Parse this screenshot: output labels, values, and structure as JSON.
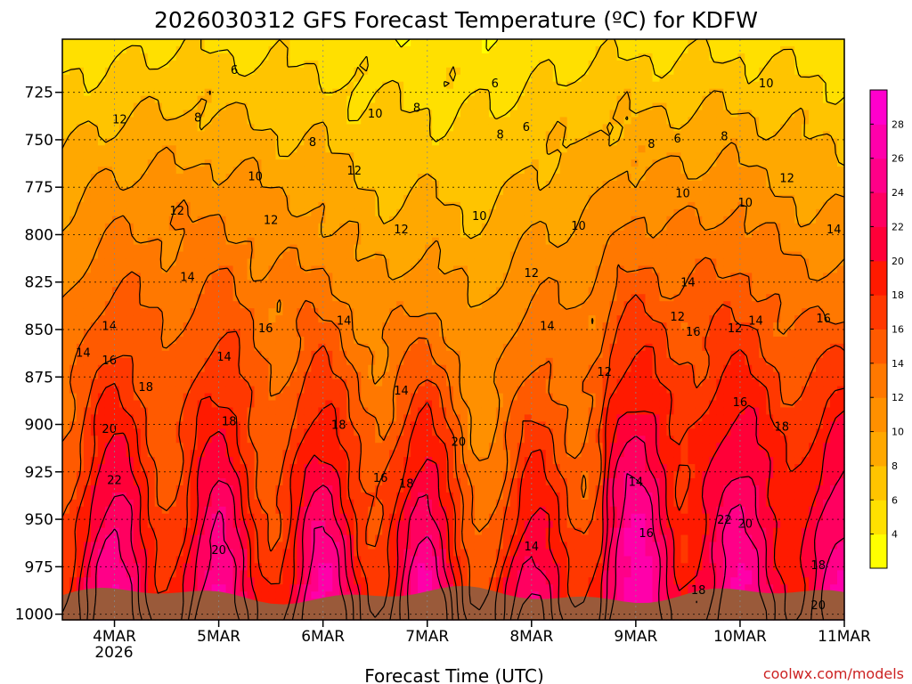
{
  "chart_data": {
    "type": "heatmap",
    "title": "2026030312 GFS Forecast Temperature (ºC) for KDFW",
    "xlabel": "Forecast Time (UTC)",
    "ylabel": "",
    "credit": "coolwx.com/models",
    "credit_color": "#cc2222",
    "y_ticks": [
      "725",
      "750",
      "775",
      "800",
      "825",
      "850",
      "875",
      "900",
      "925",
      "950",
      "975",
      "1000"
    ],
    "y_values": [
      725,
      750,
      775,
      800,
      825,
      850,
      875,
      900,
      925,
      950,
      975,
      1000
    ],
    "ylim": [
      697,
      1003
    ],
    "x_ticks": [
      "4MAR",
      "5MAR",
      "6MAR",
      "7MAR",
      "8MAR",
      "9MAR",
      "10MAR",
      "11MAR"
    ],
    "x_values": [
      0.5,
      1.5,
      2.5,
      3.5,
      4.5,
      5.5,
      6.5,
      7.5
    ],
    "x_subtitle": "2026",
    "xlim": [
      0.0,
      7.5
    ],
    "colorbar": {
      "levels": [
        2,
        4,
        6,
        8,
        10,
        12,
        14,
        16,
        18,
        20,
        22,
        24,
        26,
        28,
        30
      ],
      "labels": [
        "4",
        "6",
        "8",
        "10",
        "12",
        "14",
        "16",
        "18",
        "20",
        "22",
        "24",
        "26",
        "28"
      ],
      "colors": [
        "#ffff00",
        "#ffe000",
        "#ffc400",
        "#ffa800",
        "#ff9000",
        "#ff7800",
        "#ff5a00",
        "#ff3800",
        "#ff1a00",
        "#ff0038",
        "#ff0060",
        "#ff0088",
        "#ff00aa",
        "#ff00cc"
      ]
    },
    "ground_color": "#9a5a3a",
    "grid": true,
    "contour_labels": [
      {
        "t": "6",
        "x": 1.65,
        "p": 713
      },
      {
        "t": "6",
        "x": 4.15,
        "p": 720
      },
      {
        "t": "6",
        "x": 4.45,
        "p": 743
      },
      {
        "t": "6",
        "x": 5.9,
        "p": 749
      },
      {
        "t": "8",
        "x": 1.3,
        "p": 738
      },
      {
        "t": "8",
        "x": 2.4,
        "p": 751
      },
      {
        "t": "8",
        "x": 3.4,
        "p": 733
      },
      {
        "t": "8",
        "x": 4.2,
        "p": 747
      },
      {
        "t": "8",
        "x": 5.65,
        "p": 752
      },
      {
        "t": "8",
        "x": 6.35,
        "p": 748
      },
      {
        "t": "10",
        "x": 1.85,
        "p": 769
      },
      {
        "t": "10",
        "x": 3.0,
        "p": 736
      },
      {
        "t": "10",
        "x": 4.0,
        "p": 790
      },
      {
        "t": "10",
        "x": 4.95,
        "p": 795
      },
      {
        "t": "10",
        "x": 5.95,
        "p": 778
      },
      {
        "t": "10",
        "x": 6.55,
        "p": 783
      },
      {
        "t": "10",
        "x": 6.75,
        "p": 720
      },
      {
        "t": "12",
        "x": 0.55,
        "p": 739
      },
      {
        "t": "12",
        "x": 1.1,
        "p": 787
      },
      {
        "t": "12",
        "x": 2.0,
        "p": 792
      },
      {
        "t": "12",
        "x": 2.8,
        "p": 766
      },
      {
        "t": "12",
        "x": 3.25,
        "p": 797
      },
      {
        "t": "12",
        "x": 4.5,
        "p": 820
      },
      {
        "t": "12",
        "x": 5.2,
        "p": 872
      },
      {
        "t": "12",
        "x": 5.9,
        "p": 843
      },
      {
        "t": "12",
        "x": 6.45,
        "p": 849
      },
      {
        "t": "12",
        "x": 6.95,
        "p": 770
      },
      {
        "t": "14",
        "x": 1.2,
        "p": 822
      },
      {
        "t": "14",
        "x": 0.45,
        "p": 848
      },
      {
        "t": "14",
        "x": 0.2,
        "p": 862
      },
      {
        "t": "14",
        "x": 1.55,
        "p": 864
      },
      {
        "t": "14",
        "x": 2.7,
        "p": 845
      },
      {
        "t": "14",
        "x": 3.25,
        "p": 882
      },
      {
        "t": "14",
        "x": 4.65,
        "p": 848
      },
      {
        "t": "14",
        "x": 5.5,
        "p": 930
      },
      {
        "t": "14",
        "x": 4.5,
        "p": 964
      },
      {
        "t": "14",
        "x": 6.0,
        "p": 825
      },
      {
        "t": "14",
        "x": 6.65,
        "p": 845
      },
      {
        "t": "14",
        "x": 7.4,
        "p": 797
      },
      {
        "t": "16",
        "x": 0.45,
        "p": 866
      },
      {
        "t": "16",
        "x": 1.95,
        "p": 849
      },
      {
        "t": "16",
        "x": 3.05,
        "p": 928
      },
      {
        "t": "16",
        "x": 5.6,
        "p": 957
      },
      {
        "t": "16",
        "x": 6.05,
        "p": 851
      },
      {
        "t": "16",
        "x": 6.5,
        "p": 888
      },
      {
        "t": "16",
        "x": 7.3,
        "p": 844
      },
      {
        "t": "18",
        "x": 0.8,
        "p": 880
      },
      {
        "t": "18",
        "x": 1.6,
        "p": 898
      },
      {
        "t": "18",
        "x": 2.65,
        "p": 900
      },
      {
        "t": "18",
        "x": 3.3,
        "p": 931
      },
      {
        "t": "18",
        "x": 6.1,
        "p": 987
      },
      {
        "t": "18",
        "x": 6.9,
        "p": 901
      },
      {
        "t": "18",
        "x": 7.25,
        "p": 974
      },
      {
        "t": "20",
        "x": 0.45,
        "p": 902
      },
      {
        "t": "20",
        "x": 1.5,
        "p": 966
      },
      {
        "t": "20",
        "x": 3.8,
        "p": 909
      },
      {
        "t": "20",
        "x": 6.55,
        "p": 952
      },
      {
        "t": "20",
        "x": 7.25,
        "p": 995
      },
      {
        "t": "22",
        "x": 0.5,
        "p": 929
      },
      {
        "t": "22",
        "x": 6.35,
        "p": 950
      }
    ]
  }
}
